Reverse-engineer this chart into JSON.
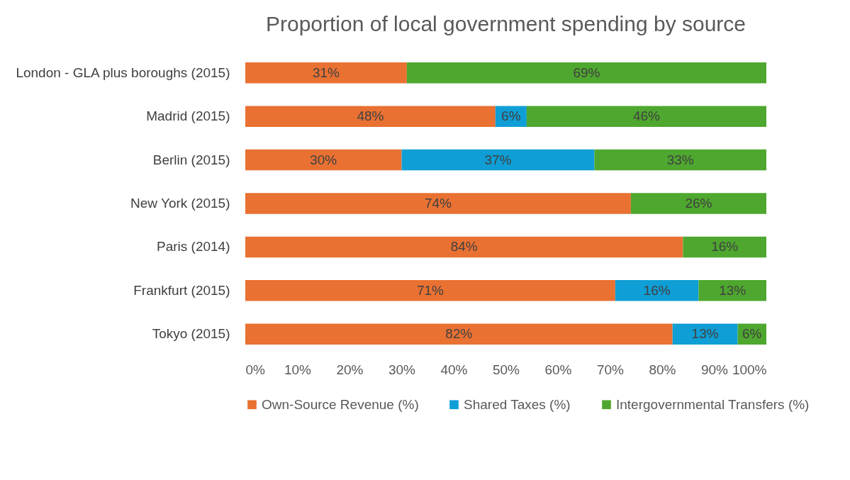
{
  "chart_data": {
    "type": "bar",
    "orientation": "horizontal",
    "stacked": true,
    "title": "Proportion of local government spending by source",
    "categories": [
      "London - GLA plus boroughs (2015)",
      "Madrid (2015)",
      "Berlin (2015)",
      "New York (2015)",
      "Paris (2014)",
      "Frankfurt (2015)",
      "Tokyo (2015)"
    ],
    "series": [
      {
        "name": "Own-Source Revenue (%)",
        "color": "#e97132",
        "values": [
          31,
          48,
          30,
          74,
          84,
          71,
          82
        ],
        "value_labels": [
          "31%",
          "48%",
          "30%",
          "74%",
          "84%",
          "71%",
          "82%"
        ]
      },
      {
        "name": "Shared Taxes (%)",
        "color": "#0f9ed5",
        "values": [
          null,
          6,
          37,
          null,
          null,
          16,
          12.5
        ],
        "value_labels": [
          null,
          "6%",
          "37%",
          null,
          null,
          "16%",
          "13%"
        ]
      },
      {
        "name": "Intergovernmental Transfers (%)",
        "color": "#4ea72e",
        "values": [
          69,
          46,
          33,
          26,
          16,
          13,
          5.5
        ],
        "value_labels": [
          "69%",
          "46%",
          "33%",
          "26%",
          "16%",
          "13%",
          "6%"
        ]
      }
    ],
    "xlim": [
      0,
      100
    ],
    "xticks": [
      {
        "value": 0,
        "label": "0%"
      },
      {
        "value": 10,
        "label": "10%"
      },
      {
        "value": 20,
        "label": "20%"
      },
      {
        "value": 30,
        "label": "30%"
      },
      {
        "value": 40,
        "label": "40%"
      },
      {
        "value": 50,
        "label": "50%"
      },
      {
        "value": 60,
        "label": "60%"
      },
      {
        "value": 70,
        "label": "70%"
      },
      {
        "value": 80,
        "label": "80%"
      },
      {
        "value": 90,
        "label": "90%"
      },
      {
        "value": 100,
        "label": "100%"
      }
    ],
    "legend": "bottom"
  }
}
